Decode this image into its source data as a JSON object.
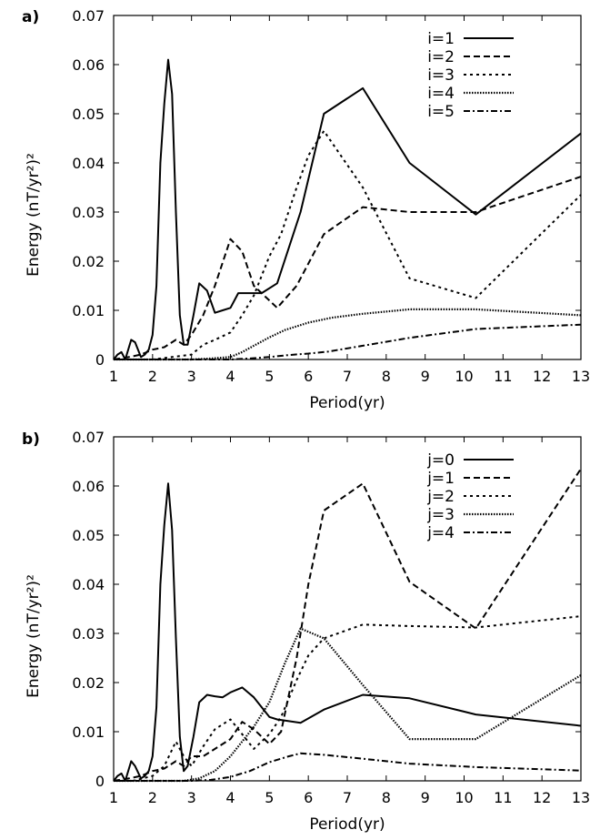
{
  "chart_data": [
    {
      "type": "line",
      "panel_label": "a)",
      "xlabel": "Period(yr)",
      "ylabel": "Energy (nT/yr²)²",
      "xlim": [
        1,
        13
      ],
      "ylim": [
        0,
        0.07
      ],
      "xticks": [
        "1",
        "2",
        "3",
        "4",
        "5",
        "6",
        "7",
        "8",
        "9",
        "10",
        "11",
        "12",
        "13"
      ],
      "yticks": [
        "0",
        "0.01",
        "0.02",
        "0.03",
        "0.04",
        "0.05",
        "0.06",
        "0.07"
      ],
      "legend_position": "top-right",
      "series": [
        {
          "name": "i=1",
          "style": "solid",
          "x": [
            1,
            1.1,
            1.2,
            1.3,
            1.45,
            1.55,
            1.7,
            1.8,
            1.9,
            2.0,
            2.1,
            2.2,
            2.3,
            2.4,
            2.5,
            2.6,
            2.7,
            2.8,
            2.9,
            3.05,
            3.2,
            3.4,
            3.6,
            3.8,
            4.0,
            4.2,
            4.5,
            4.8,
            5.2,
            5.8,
            6.4,
            7.4,
            8.6,
            10.3,
            13
          ],
          "y": [
            0,
            0.001,
            0.0015,
            0,
            0.004,
            0.0035,
            0.0005,
            0.001,
            0.002,
            0.005,
            0.015,
            0.04,
            0.052,
            0.061,
            0.054,
            0.03,
            0.009,
            0.003,
            0.003,
            0.009,
            0.0155,
            0.014,
            0.0095,
            0.01,
            0.0105,
            0.0135,
            0.0135,
            0.0135,
            0.0155,
            0.03,
            0.05,
            0.0552,
            0.04,
            0.0295,
            0.046
          ]
        },
        {
          "name": "i=2",
          "style": "dashed",
          "x": [
            1,
            1.4,
            1.7,
            2.0,
            2.3,
            2.6,
            2.8,
            3.0,
            3.3,
            3.6,
            4.0,
            4.3,
            4.6,
            5.2,
            5.7,
            6.4,
            7.4,
            8.6,
            10.3,
            13
          ],
          "y": [
            0,
            0.0005,
            0.001,
            0.002,
            0.0025,
            0.004,
            0.003,
            0.005,
            0.009,
            0.015,
            0.0245,
            0.022,
            0.015,
            0.0105,
            0.015,
            0.0255,
            0.031,
            0.03,
            0.03,
            0.0372
          ]
        },
        {
          "name": "i=3",
          "style": "dotted",
          "x": [
            1,
            1.5,
            2.0,
            2.5,
            3.0,
            3.3,
            3.6,
            4.0,
            4.3,
            4.6,
            5.0,
            5.3,
            5.7,
            6.0,
            6.4,
            7.4,
            8.6,
            10.3,
            13
          ],
          "y": [
            0,
            0,
            0,
            0.0005,
            0.001,
            0.003,
            0.004,
            0.0055,
            0.009,
            0.013,
            0.021,
            0.0255,
            0.035,
            0.0415,
            0.0465,
            0.035,
            0.0165,
            0.0125,
            0.0335
          ]
        },
        {
          "name": "i=4",
          "style": "fine-dotted",
          "x": [
            1,
            2,
            3,
            3.5,
            4.0,
            4.3,
            4.6,
            5.0,
            5.4,
            6.0,
            6.6,
            7.4,
            8.6,
            10.3,
            13
          ],
          "y": [
            0,
            0,
            0,
            0.0002,
            0.0005,
            0.0015,
            0.0028,
            0.0045,
            0.006,
            0.0075,
            0.0085,
            0.0093,
            0.0102,
            0.0102,
            0.009
          ]
        },
        {
          "name": "i=5",
          "style": "dash-dot",
          "x": [
            1,
            2,
            3,
            4,
            4.5,
            5.0,
            5.5,
            6.0,
            6.5,
            7.4,
            8.6,
            10.3,
            13
          ],
          "y": [
            0,
            0,
            0,
            0,
            0.0002,
            0.0005,
            0.0009,
            0.0012,
            0.0016,
            0.0028,
            0.0044,
            0.0062,
            0.0071
          ]
        }
      ]
    },
    {
      "type": "line",
      "panel_label": "b)",
      "xlabel": "Period(yr)",
      "ylabel": "Energy (nT/yr²)²",
      "xlim": [
        1,
        13
      ],
      "ylim": [
        0,
        0.07
      ],
      "xticks": [
        "1",
        "2",
        "3",
        "4",
        "5",
        "6",
        "7",
        "8",
        "9",
        "10",
        "11",
        "12",
        "13"
      ],
      "yticks": [
        "0",
        "0.01",
        "0.02",
        "0.03",
        "0.04",
        "0.05",
        "0.06",
        "0.07"
      ],
      "legend_position": "top-right",
      "series": [
        {
          "name": "j=0",
          "style": "solid",
          "x": [
            1,
            1.1,
            1.2,
            1.3,
            1.45,
            1.55,
            1.7,
            1.8,
            1.9,
            2.0,
            2.1,
            2.2,
            2.3,
            2.4,
            2.5,
            2.6,
            2.7,
            2.8,
            2.9,
            3.05,
            3.2,
            3.4,
            3.6,
            3.8,
            4.0,
            4.3,
            4.6,
            5.0,
            5.2,
            5.8,
            6.4,
            7.4,
            8.6,
            10.3,
            13
          ],
          "y": [
            0,
            0.001,
            0.0015,
            0,
            0.004,
            0.003,
            0.0005,
            0.001,
            0.002,
            0.005,
            0.015,
            0.04,
            0.052,
            0.0605,
            0.051,
            0.029,
            0.009,
            0.002,
            0.003,
            0.009,
            0.016,
            0.0175,
            0.0172,
            0.017,
            0.018,
            0.019,
            0.017,
            0.013,
            0.0125,
            0.0118,
            0.0145,
            0.0175,
            0.0168,
            0.0135,
            0.0112
          ]
        },
        {
          "name": "j=1",
          "style": "dashed",
          "x": [
            1,
            1.4,
            1.7,
            2.0,
            2.3,
            2.6,
            2.8,
            3.0,
            3.3,
            3.6,
            4.0,
            4.3,
            4.6,
            5.0,
            5.3,
            5.7,
            6.0,
            6.4,
            7.4,
            8.6,
            10.3,
            13
          ],
          "y": [
            0,
            0.0005,
            0.001,
            0.002,
            0.0025,
            0.004,
            0.003,
            0.005,
            0.005,
            0.0065,
            0.0085,
            0.012,
            0.0105,
            0.0075,
            0.01,
            0.025,
            0.04,
            0.055,
            0.0605,
            0.0405,
            0.031,
            0.0635
          ]
        },
        {
          "name": "j=2",
          "style": "dotted",
          "x": [
            1,
            1.5,
            2.0,
            2.3,
            2.6,
            2.8,
            3.0,
            3.3,
            3.6,
            4.0,
            4.3,
            4.6,
            5.0,
            5.3,
            5.7,
            6.0,
            6.4,
            7.4,
            8.6,
            10.3,
            13
          ],
          "y": [
            0,
            0,
            0.001,
            0.003,
            0.008,
            0.005,
            0.003,
            0.007,
            0.0105,
            0.0125,
            0.0095,
            0.0065,
            0.0095,
            0.013,
            0.0205,
            0.0255,
            0.029,
            0.0318,
            0.0315,
            0.0312,
            0.0335
          ]
        },
        {
          "name": "j=3",
          "style": "fine-dotted",
          "x": [
            1,
            2,
            2.8,
            3.2,
            3.6,
            4.0,
            4.3,
            4.6,
            5.0,
            5.4,
            5.8,
            6.4,
            7.4,
            8.6,
            10.3,
            13
          ],
          "y": [
            0,
            0,
            0,
            0.0005,
            0.002,
            0.005,
            0.008,
            0.011,
            0.016,
            0.024,
            0.031,
            0.029,
            0.0195,
            0.0085,
            0.0085,
            0.0215
          ]
        },
        {
          "name": "j=4",
          "style": "dash-dot",
          "x": [
            1,
            2,
            3,
            3.5,
            4.0,
            4.5,
            5.0,
            5.5,
            5.8,
            6.4,
            7.4,
            8.6,
            10.3,
            13
          ],
          "y": [
            0,
            0,
            0,
            0.0002,
            0.0008,
            0.002,
            0.0038,
            0.005,
            0.0056,
            0.0053,
            0.0045,
            0.0035,
            0.0028,
            0.0021
          ]
        }
      ]
    }
  ]
}
